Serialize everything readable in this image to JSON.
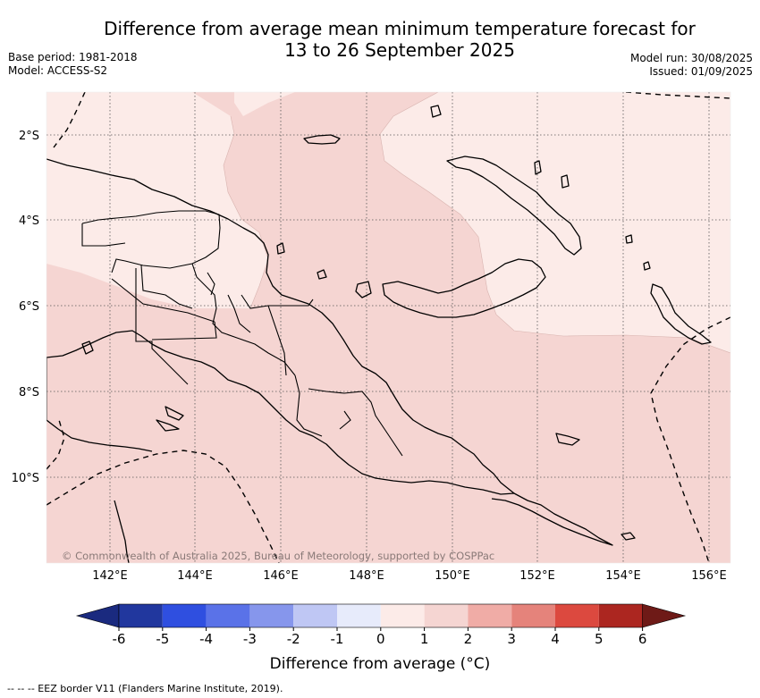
{
  "title": {
    "line1": "Difference from average mean minimum temperature forecast for",
    "line2": "13 to 26 September 2025"
  },
  "meta_left": {
    "base_period": "Base period: 1981-2018",
    "model": "Model: ACCESS-S2"
  },
  "meta_right": {
    "model_run": "Model run: 30/08/2025",
    "issued": "Issued: 01/09/2025"
  },
  "map": {
    "lat_labels": [
      "2°S",
      "4°S",
      "6°S",
      "8°S",
      "10°S"
    ],
    "lon_labels": [
      "142°E",
      "144°E",
      "146°E",
      "148°E",
      "150°E",
      "152°E",
      "154°E",
      "156°E"
    ],
    "copyright": "© Commonwealth of Australia 2025, Bureau of Meteorology, supported by COSPPac",
    "region_values": [
      {
        "zone": "north-west sea",
        "anomaly_bin": "0 to 1"
      },
      {
        "zone": "north-east sea",
        "anomaly_bin": "0 to 1"
      },
      {
        "zone": "central / southern area",
        "anomaly_bin": "1 to 2"
      }
    ]
  },
  "colorbar": {
    "ticks": [
      "-6",
      "-5",
      "-4",
      "-3",
      "-2",
      "-1",
      "0",
      "1",
      "2",
      "3",
      "4",
      "5",
      "6"
    ],
    "colors": [
      "#21379e",
      "#2f4fe0",
      "#5a72e8",
      "#8696ec",
      "#bfc7f4",
      "#e7ebfb",
      "#fcebe8",
      "#f5d5d2",
      "#f0aca6",
      "#e5837b",
      "#dc493f",
      "#ac2620"
    ],
    "under_color": "#1a2a7f",
    "over_color": "#6e1a17",
    "label": "Difference from average (°C)"
  },
  "footnote": "-- -- -- EEZ border V11 (Flanders Marine Institute, 2019)."
}
